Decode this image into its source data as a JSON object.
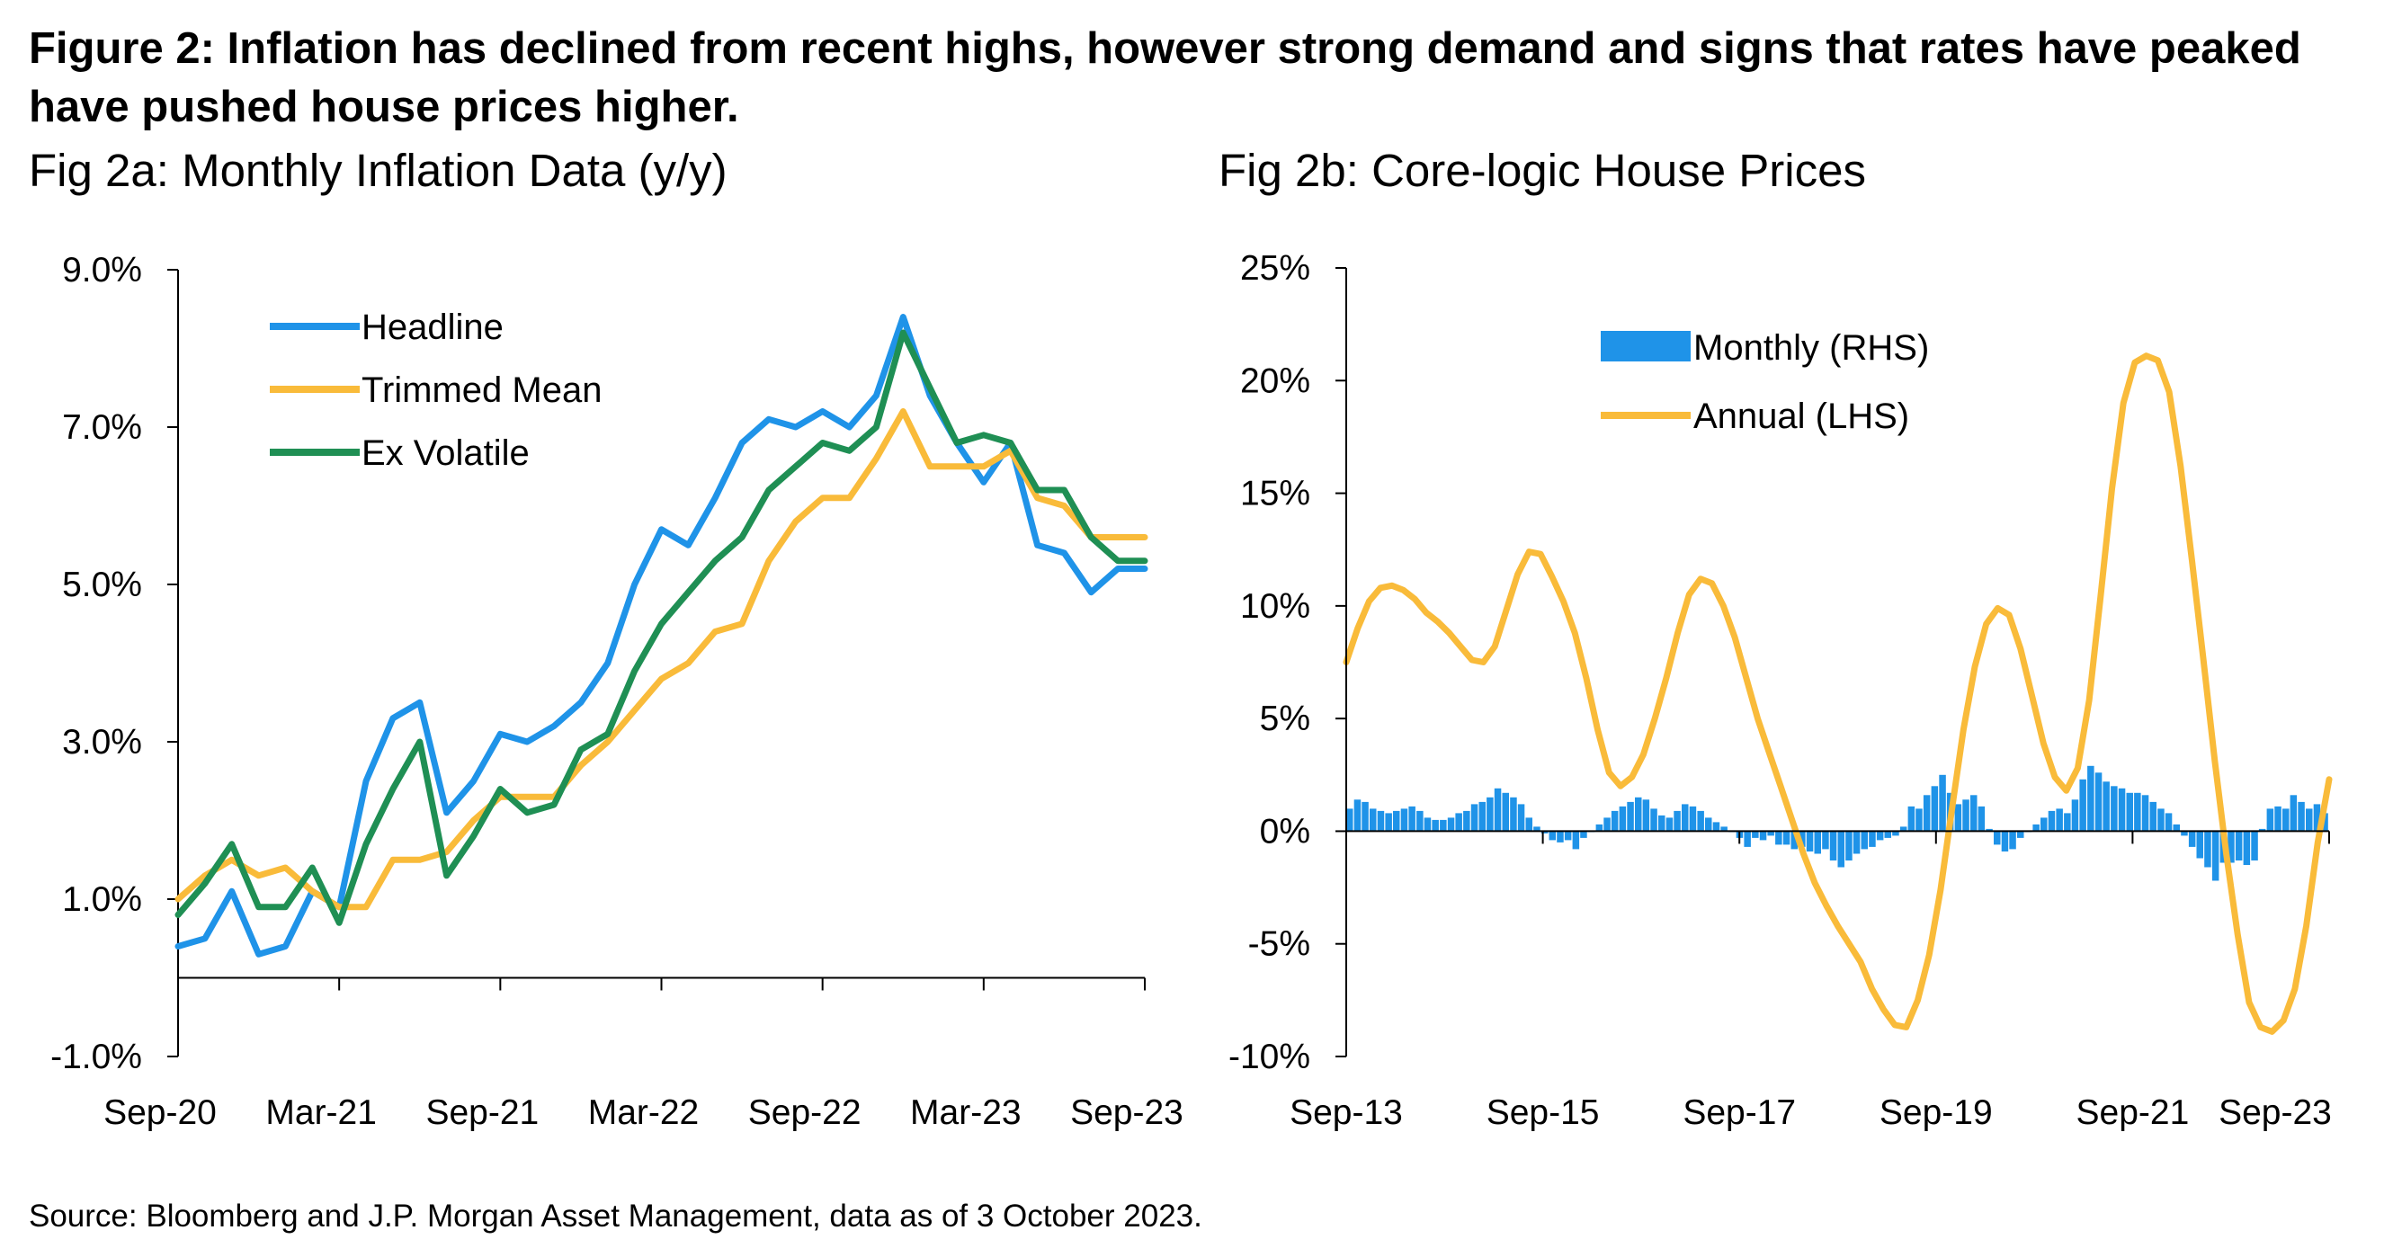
{
  "title": "Figure 2: Inflation has declined from recent highs, however strong demand and signs that rates have peaked have pushed house prices higher.",
  "source": "Source: Bloomberg and J.P. Morgan Asset Management, data as of 3 October 2023.",
  "chart_data": [
    {
      "type": "line",
      "title": "Fig 2a: Monthly Inflation Data (y/y)",
      "xlabel": "",
      "ylabel": "",
      "x_ticks": [
        "Sep-20",
        "Mar-21",
        "Sep-21",
        "Mar-22",
        "Sep-22",
        "Mar-23",
        "Sep-23"
      ],
      "y_ticks": [
        "-1.0%",
        "1.0%",
        "3.0%",
        "5.0%",
        "7.0%",
        "9.0%"
      ],
      "ylim": [
        -1.0,
        9.0
      ],
      "x_range": [
        "Sep-20",
        "Sep-23"
      ],
      "grid": false,
      "legend_position": "top-left",
      "series": [
        {
          "name": "Headline",
          "color": "#1f93e8",
          "values": [
            0.4,
            0.5,
            1.1,
            0.3,
            0.4,
            1.1,
            0.9,
            2.5,
            3.3,
            3.5,
            2.1,
            2.5,
            3.1,
            3.0,
            3.2,
            3.5,
            4.0,
            5.0,
            5.7,
            5.5,
            6.1,
            6.8,
            7.1,
            7.0,
            7.2,
            7.0,
            7.4,
            8.4,
            7.4,
            6.8,
            6.3,
            6.8,
            5.5,
            5.4,
            4.9,
            5.2,
            5.2
          ]
        },
        {
          "name": "Trimmed Mean",
          "color": "#f9bb3a",
          "values": [
            1.0,
            1.3,
            1.5,
            1.3,
            1.4,
            1.1,
            0.9,
            0.9,
            1.5,
            1.5,
            1.6,
            2.0,
            2.3,
            2.3,
            2.3,
            2.7,
            3.0,
            3.4,
            3.8,
            4.0,
            4.4,
            4.5,
            5.3,
            5.8,
            6.1,
            6.1,
            6.6,
            7.2,
            6.5,
            6.5,
            6.5,
            6.7,
            6.1,
            6.0,
            5.6,
            5.6,
            5.6
          ]
        },
        {
          "name": "Ex Volatile",
          "color": "#1f8f54",
          "values": [
            0.8,
            1.2,
            1.7,
            0.9,
            0.9,
            1.4,
            0.7,
            1.7,
            2.4,
            3.0,
            1.3,
            1.8,
            2.4,
            2.1,
            2.2,
            2.9,
            3.1,
            3.9,
            4.5,
            4.9,
            5.3,
            5.6,
            6.2,
            6.5,
            6.8,
            6.7,
            7.0,
            8.2,
            7.5,
            6.8,
            6.9,
            6.8,
            6.2,
            6.2,
            5.6,
            5.3,
            5.3
          ]
        }
      ]
    },
    {
      "type": "line",
      "title": "Fig 2b: Core-logic House Prices",
      "xlabel": "",
      "ylabel": "",
      "x_ticks": [
        "Sep-13",
        "Sep-15",
        "Sep-17",
        "Sep-19",
        "Sep-21",
        "Sep-23"
      ],
      "y_ticks": [
        "-10%",
        "-5%",
        "0%",
        "5%",
        "10%",
        "15%",
        "20%",
        "25%"
      ],
      "ylim": [
        -10,
        25
      ],
      "x_range": [
        "Sep-13",
        "Sep-23"
      ],
      "grid": false,
      "legend_position": "top-center",
      "monthly_scale_note": "Monthly (RHS) bars share the 0% baseline; right-hand axis not labelled",
      "series": [
        {
          "name": "Monthly (RHS)",
          "type": "bar",
          "color": "#1f93e8",
          "values": [
            1.0,
            1.4,
            1.3,
            1.0,
            0.9,
            0.8,
            0.9,
            1.0,
            1.1,
            0.9,
            0.6,
            0.5,
            0.5,
            0.6,
            0.8,
            0.9,
            1.2,
            1.3,
            1.5,
            1.9,
            1.7,
            1.5,
            1.2,
            0.6,
            0.2,
            -0.1,
            -0.4,
            -0.5,
            -0.4,
            -0.8,
            -0.3,
            0.0,
            0.3,
            0.6,
            0.9,
            1.1,
            1.3,
            1.5,
            1.4,
            1.0,
            0.7,
            0.6,
            0.9,
            1.2,
            1.1,
            0.9,
            0.6,
            0.4,
            0.2,
            0.0,
            -0.3,
            -0.7,
            -0.3,
            -0.4,
            -0.2,
            -0.6,
            -0.6,
            -0.8,
            -0.7,
            -0.9,
            -1.0,
            -0.8,
            -1.3,
            -1.6,
            -1.3,
            -1.0,
            -0.8,
            -0.7,
            -0.4,
            -0.3,
            -0.2,
            0.2,
            1.1,
            1.0,
            1.6,
            2.0,
            2.5,
            1.7,
            1.2,
            1.4,
            1.6,
            1.1,
            0.1,
            -0.6,
            -0.9,
            -0.8,
            -0.3,
            0.0,
            0.3,
            0.6,
            0.9,
            1.0,
            0.8,
            1.4,
            2.3,
            2.9,
            2.6,
            2.2,
            2.0,
            1.9,
            1.7,
            1.7,
            1.6,
            1.3,
            1.0,
            0.8,
            0.3,
            -0.2,
            -0.7,
            -1.2,
            -1.6,
            -2.2,
            -1.4,
            -1.4,
            -1.3,
            -1.5,
            -1.3,
            0.1,
            1.0,
            1.1,
            1.0,
            1.6,
            1.3,
            1.0,
            1.2,
            0.8
          ]
        },
        {
          "name": "Annual (LHS)",
          "type": "line",
          "color": "#f9bb3a",
          "values": [
            7.5,
            9.0,
            10.2,
            10.8,
            10.9,
            10.7,
            10.3,
            9.7,
            9.3,
            8.8,
            8.2,
            7.6,
            7.5,
            8.2,
            9.8,
            11.4,
            12.4,
            12.3,
            11.3,
            10.2,
            8.8,
            6.8,
            4.5,
            2.6,
            2.0,
            2.4,
            3.4,
            5.0,
            6.8,
            8.8,
            10.5,
            11.2,
            11.0,
            10.0,
            8.6,
            6.8,
            5.0,
            3.5,
            2.0,
            0.5,
            -1.0,
            -2.3,
            -3.3,
            -4.2,
            -5.0,
            -5.8,
            -7.0,
            -7.9,
            -8.6,
            -8.7,
            -7.5,
            -5.5,
            -2.6,
            1.0,
            4.5,
            7.3,
            9.2,
            9.9,
            9.6,
            8.1,
            6.0,
            3.9,
            2.4,
            1.8,
            2.8,
            5.8,
            10.4,
            15.2,
            19.0,
            20.8,
            21.1,
            20.9,
            19.5,
            16.2,
            12.0,
            7.6,
            3.1,
            -1.0,
            -4.6,
            -7.6,
            -8.7,
            -8.9,
            -8.4,
            -7.0,
            -4.2,
            -0.5,
            2.3
          ]
        }
      ]
    }
  ]
}
